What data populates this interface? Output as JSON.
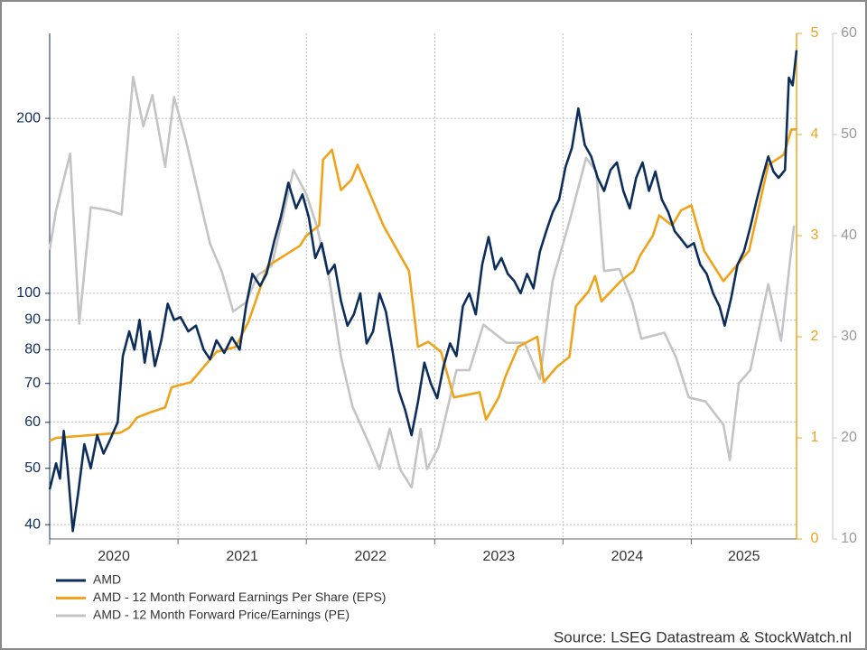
{
  "chart_data": {
    "type": "line",
    "xlim": [
      2020.0,
      2025.82
    ],
    "xticks": [
      2020,
      2021,
      2022,
      2023,
      2024,
      2025
    ],
    "ylim": [
      37.8,
      280
    ],
    "ylog": true,
    "yticks": [
      40,
      50,
      60,
      70,
      80,
      90,
      100,
      200
    ],
    "y2lim": [
      0,
      5
    ],
    "y2ticks": [
      0,
      1,
      2,
      3,
      4,
      5
    ],
    "y2color": "#f0a31a",
    "y3lim": [
      10,
      60
    ],
    "y3ticks": [
      10,
      20,
      30,
      40,
      50,
      60
    ],
    "y3color": "#c4c4c4",
    "ycolor": "#0d2d5a",
    "grid": true,
    "legend": "bottom-left",
    "source": "Source: LSEG Datastream & StockWatch.nl",
    "series": [
      {
        "name": "AMD",
        "color": "#0d2d5a",
        "axis": "y",
        "x": [
          2020.0,
          2020.05,
          2020.08,
          2020.11,
          2020.14,
          2020.18,
          2020.22,
          2020.27,
          2020.32,
          2020.37,
          2020.42,
          2020.47,
          2020.53,
          2020.57,
          2020.62,
          2020.66,
          2020.7,
          2020.74,
          2020.78,
          2020.82,
          2020.87,
          2020.92,
          2020.97,
          2021.02,
          2021.08,
          2021.14,
          2021.2,
          2021.25,
          2021.3,
          2021.36,
          2021.42,
          2021.48,
          2021.53,
          2021.58,
          2021.64,
          2021.69,
          2021.75,
          2021.8,
          2021.86,
          2021.92,
          2021.97,
          2022.02,
          2022.07,
          2022.12,
          2022.17,
          2022.22,
          2022.27,
          2022.32,
          2022.37,
          2022.42,
          2022.47,
          2022.52,
          2022.57,
          2022.62,
          2022.67,
          2022.72,
          2022.77,
          2022.82,
          2022.87,
          2022.92,
          2022.97,
          2023.02,
          2023.07,
          2023.12,
          2023.17,
          2023.22,
          2023.27,
          2023.32,
          2023.37,
          2023.42,
          2023.47,
          2023.52,
          2023.57,
          2023.62,
          2023.67,
          2023.72,
          2023.77,
          2023.82,
          2023.87,
          2023.92,
          2023.97,
          2024.02,
          2024.07,
          2024.12,
          2024.17,
          2024.22,
          2024.27,
          2024.32,
          2024.37,
          2024.42,
          2024.47,
          2024.52,
          2024.57,
          2024.62,
          2024.67,
          2024.72,
          2024.77,
          2024.82,
          2024.87,
          2024.92,
          2024.97,
          2025.02,
          2025.07,
          2025.12,
          2025.17,
          2025.22,
          2025.26,
          2025.31,
          2025.36,
          2025.41,
          2025.46,
          2025.51,
          2025.56,
          2025.6,
          2025.64,
          2025.68,
          2025.73,
          2025.76,
          2025.79,
          2025.82
        ],
        "values": [
          46,
          51,
          48,
          58,
          50,
          39,
          45,
          55,
          50,
          57,
          53,
          56,
          60,
          78,
          86,
          80,
          90,
          76,
          86,
          75,
          83,
          96,
          90,
          91,
          86,
          88,
          80,
          77,
          83,
          79,
          84,
          80,
          95,
          108,
          103,
          108,
          123,
          135,
          155,
          140,
          148,
          135,
          115,
          122,
          108,
          112,
          97,
          88,
          92,
          100,
          82,
          86,
          100,
          93,
          80,
          68,
          63,
          57,
          65,
          76,
          70,
          66,
          75,
          82,
          78,
          95,
          100,
          92,
          112,
          125,
          110,
          115,
          108,
          105,
          100,
          108,
          102,
          118,
          128,
          138,
          145,
          165,
          178,
          208,
          180,
          172,
          158,
          150,
          163,
          168,
          150,
          140,
          158,
          168,
          150,
          162,
          145,
          138,
          128,
          124,
          120,
          122,
          112,
          108,
          100,
          95,
          88,
          98,
          112,
          118,
          130,
          145,
          160,
          172,
          162,
          158,
          163,
          235,
          228,
          262
        ]
      },
      {
        "name": "AMD - 12 Month Forward Earnings Per Share (EPS)",
        "color": "#f0a31a",
        "axis": "y2",
        "x": [
          2020.0,
          2020.05,
          2020.55,
          2020.62,
          2020.68,
          2020.78,
          2020.9,
          2020.95,
          2021.1,
          2021.2,
          2021.3,
          2021.45,
          2021.55,
          2021.7,
          2021.95,
          2022.0,
          2022.1,
          2022.13,
          2022.2,
          2022.27,
          2022.35,
          2022.4,
          2022.6,
          2022.8,
          2022.87,
          2022.95,
          2023.05,
          2023.15,
          2023.35,
          2023.4,
          2023.5,
          2023.55,
          2023.65,
          2023.8,
          2023.85,
          2023.95,
          2024.05,
          2024.1,
          2024.2,
          2024.25,
          2024.3,
          2024.45,
          2024.55,
          2024.6,
          2024.7,
          2024.75,
          2024.85,
          2024.92,
          2025.0,
          2025.1,
          2025.25,
          2025.35,
          2025.45,
          2025.6,
          2025.72,
          2025.78,
          2025.82
        ],
        "values": [
          0.97,
          1.0,
          1.05,
          1.1,
          1.2,
          1.25,
          1.3,
          1.5,
          1.55,
          1.7,
          1.85,
          1.9,
          2.15,
          2.7,
          2.9,
          3.0,
          3.1,
          3.75,
          3.85,
          3.45,
          3.55,
          3.7,
          3.1,
          2.65,
          1.9,
          1.95,
          1.85,
          1.4,
          1.45,
          1.18,
          1.4,
          1.6,
          1.9,
          2.0,
          1.55,
          1.7,
          1.8,
          2.3,
          2.45,
          2.6,
          2.35,
          2.55,
          2.65,
          2.8,
          3.0,
          3.2,
          3.1,
          3.25,
          3.3,
          2.85,
          2.55,
          2.7,
          2.85,
          3.7,
          3.8,
          4.05,
          4.05
        ]
      },
      {
        "name": "AMD - 12 Month Forward Price/Earnings (PE)",
        "color": "#c4c4c4",
        "axis": "y3",
        "x": [
          2020.0,
          2020.05,
          2020.16,
          2020.23,
          2020.32,
          2020.46,
          2020.56,
          2020.65,
          2020.73,
          2020.8,
          2020.9,
          2020.97,
          2021.06,
          2021.16,
          2021.25,
          2021.34,
          2021.43,
          2021.53,
          2021.62,
          2021.73,
          2021.9,
          2022.0,
          2022.08,
          2022.18,
          2022.27,
          2022.36,
          2022.5,
          2022.57,
          2022.65,
          2022.73,
          2022.82,
          2022.89,
          2022.94,
          2023.03,
          2023.17,
          2023.27,
          2023.38,
          2023.56,
          2023.7,
          2023.82,
          2023.92,
          2024.05,
          2024.18,
          2024.26,
          2024.32,
          2024.44,
          2024.54,
          2024.61,
          2024.79,
          2024.88,
          2024.98,
          2025.11,
          2025.25,
          2025.3,
          2025.37,
          2025.46,
          2025.6,
          2025.7,
          2025.8
        ],
        "values": [
          38.6,
          42.5,
          48.1,
          31.3,
          42.8,
          42.5,
          42.1,
          55.7,
          50.8,
          53.9,
          46.8,
          53.7,
          49.5,
          44.1,
          39.2,
          36.5,
          32.5,
          33.4,
          36.1,
          37,
          46.5,
          44.1,
          41,
          35.6,
          28,
          23.1,
          19.1,
          16.9,
          20.9,
          16.9,
          15.1,
          20.9,
          16.9,
          19.1,
          26.7,
          26.7,
          31.2,
          29.4,
          29.4,
          25.8,
          35.6,
          41.4,
          47.7,
          46.3,
          36.5,
          36.7,
          33.4,
          29.8,
          30.4,
          28,
          24,
          23.6,
          21.3,
          17.8,
          25.4,
          26.7,
          35.2,
          29.6,
          41
        ]
      }
    ]
  }
}
